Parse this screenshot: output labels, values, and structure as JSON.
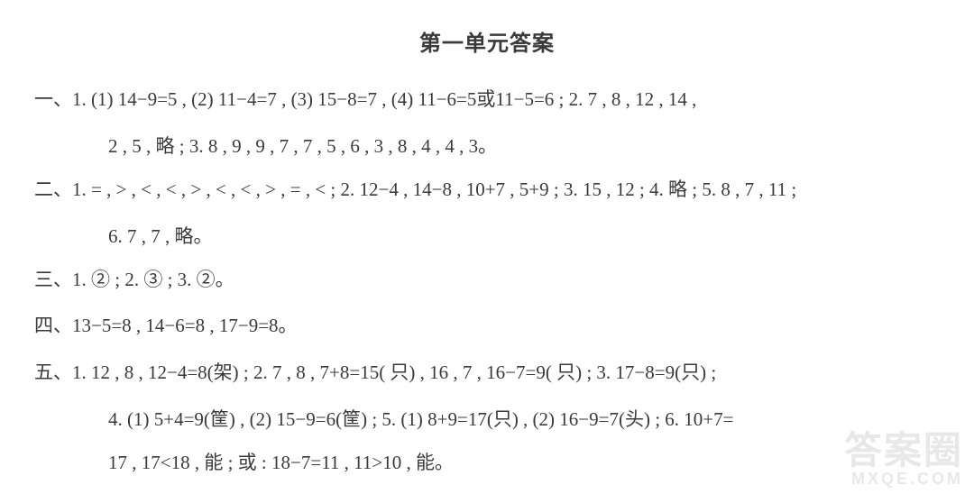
{
  "title": "第一单元答案",
  "sections": {
    "one": {
      "label": "一、",
      "line1": "1. (1) 14−9=5 , (2) 11−4=7 , (3) 15−8=7 , (4) 11−6=5或11−5=6 ; 2. 7 , 8 , 12 , 14 ,",
      "line2": "2 , 5 , 略 ; 3. 8 , 9 , 9 , 7 , 7 , 5 , 6 , 3 , 8 , 4 , 4 , 3。"
    },
    "two": {
      "label": "二、",
      "line1": "1. = , > , < , < , > , < , < , > , = , < ; 2. 12−4 , 14−8 , 10+7 , 5+9 ; 3. 15 , 12 ; 4. 略 ; 5. 8 , 7 , 11 ;",
      "line2": "6. 7 , 7 , 略。"
    },
    "three": {
      "label": "三、",
      "line1": "1. ② ; 2. ③ ; 3. ②。"
    },
    "four": {
      "label": "四、",
      "line1": "13−5=8 , 14−6=8 , 17−9=8。"
    },
    "five": {
      "label": "五、",
      "line1": "1. 12 , 8 , 12−4=8(架) ; 2. 7 , 8 , 7+8=15( 只) , 16 , 7 , 16−7=9( 只) ; 3. 17−8=9(只) ;",
      "line2": "4. (1) 5+4=9(筐) , (2) 15−9=6(筐) ; 5. (1) 8+9=17(只) , (2) 16−9=7(头) ; 6. 10+7=",
      "line3": "17 , 17<18 , 能 ; 或 : 18−7=11 , 11>10 , 能。"
    }
  },
  "watermark": {
    "big": "答案圈",
    "small": "MXQE.COM"
  }
}
